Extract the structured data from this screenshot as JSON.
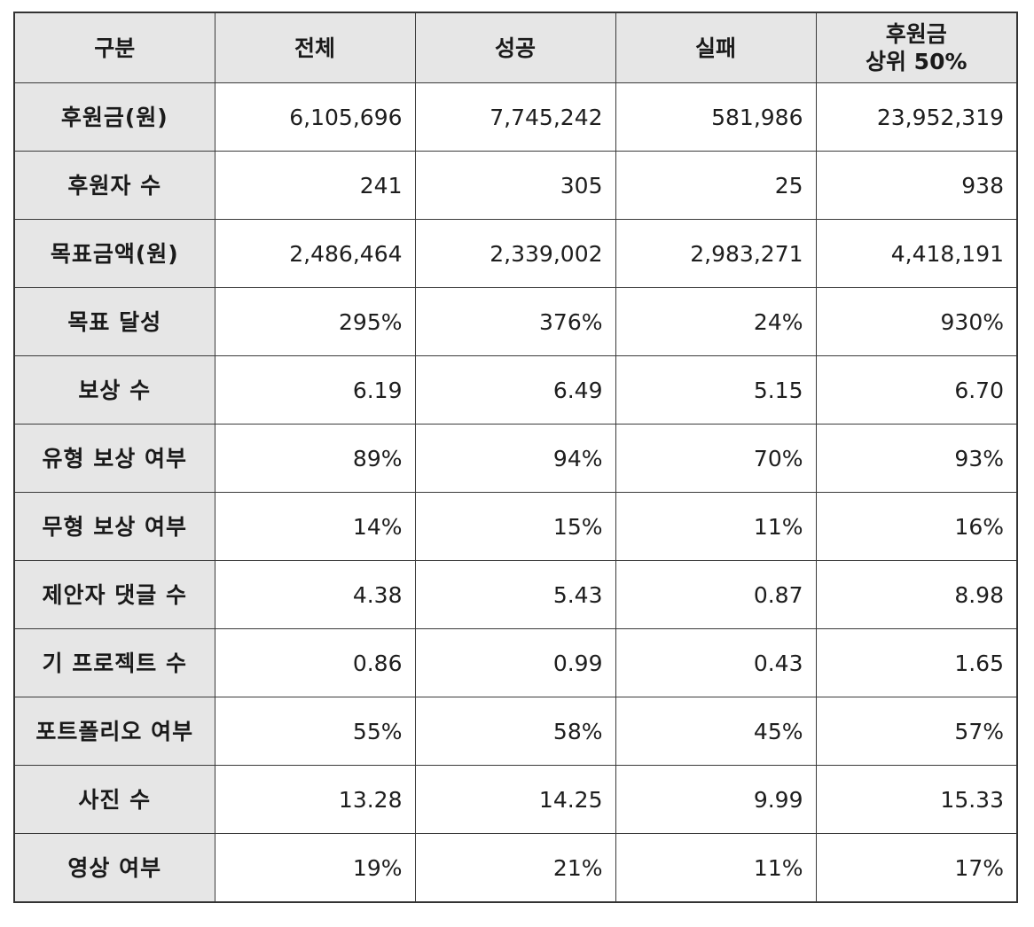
{
  "table": {
    "headers": [
      "구분",
      "전체",
      "성공",
      "실패"
    ],
    "last_header": [
      "후원금",
      "상위 50%"
    ],
    "rows": [
      {
        "label": "후원금(원)",
        "values": [
          "6,105,696",
          "7,745,242",
          "581,986",
          "23,952,319"
        ]
      },
      {
        "label": "후원자 수",
        "values": [
          "241",
          "305",
          "25",
          "938"
        ]
      },
      {
        "label": "목표금액(원)",
        "values": [
          "2,486,464",
          "2,339,002",
          "2,983,271",
          "4,418,191"
        ]
      },
      {
        "label": "목표 달성",
        "values": [
          "295%",
          "376%",
          "24%",
          "930%"
        ]
      },
      {
        "label": "보상 수",
        "values": [
          "6.19",
          "6.49",
          "5.15",
          "6.70"
        ]
      },
      {
        "label": "유형 보상 여부",
        "values": [
          "89%",
          "94%",
          "70%",
          "93%"
        ]
      },
      {
        "label": "무형 보상 여부",
        "values": [
          "14%",
          "15%",
          "11%",
          "16%"
        ]
      },
      {
        "label": "제안자 댓글 수",
        "values": [
          "4.38",
          "5.43",
          "0.87",
          "8.98"
        ]
      },
      {
        "label": "기 프로젝트 수",
        "values": [
          "0.86",
          "0.99",
          "0.43",
          "1.65"
        ]
      },
      {
        "label": "포트폴리오 여부",
        "values": [
          "55%",
          "58%",
          "45%",
          "57%"
        ]
      },
      {
        "label": "사진 수",
        "values": [
          "13.28",
          "14.25",
          "9.99",
          "15.33"
        ]
      },
      {
        "label": "영상 여부",
        "values": [
          "19%",
          "21%",
          "11%",
          "17%"
        ]
      }
    ]
  }
}
